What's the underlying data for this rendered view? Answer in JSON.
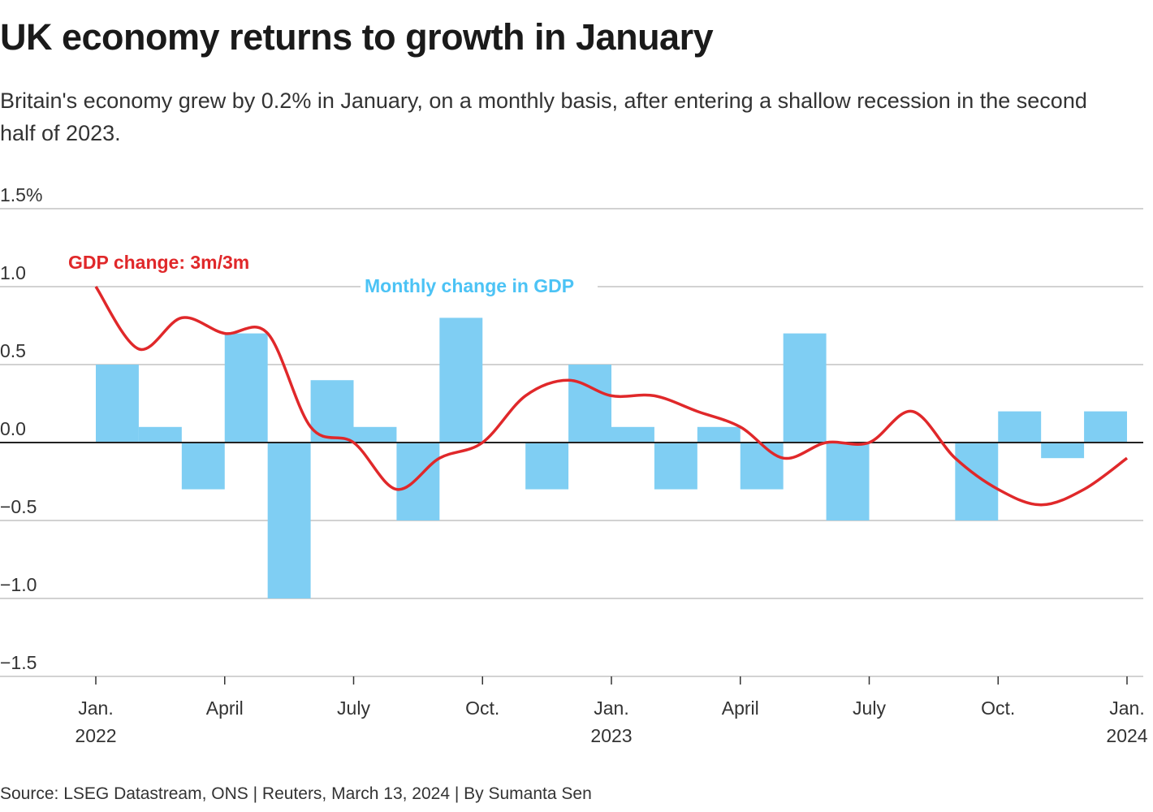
{
  "title": "UK economy returns to growth in January",
  "subtitle": "Britain's economy grew by 0.2% in January, on a monthly basis, after entering a shallow recession in the second half of 2023.",
  "source": "Source: LSEG Datastream, ONS | Reuters, March 13, 2024 | By Sumanta Sen",
  "colors": {
    "bars": "#7fcef3",
    "line": "#e0282a",
    "bar_label": "#4cc3f5",
    "zero_line": "#222222",
    "grid": "#c4c4c4"
  },
  "chart_data": {
    "type": "bar+line",
    "ylim": [
      -1.5,
      1.5
    ],
    "y_ticks": [
      {
        "value": 1.5,
        "label": "1.5%"
      },
      {
        "value": 1.0,
        "label": "1.0"
      },
      {
        "value": 0.5,
        "label": "0.5"
      },
      {
        "value": 0.0,
        "label": "0.0"
      },
      {
        "value": -0.5,
        "label": "−0.5"
      },
      {
        "value": -1.0,
        "label": "−1.0"
      },
      {
        "value": -1.5,
        "label": "−1.5"
      }
    ],
    "x_ticks": [
      {
        "date": "2022-01",
        "label": "Jan.",
        "year": "2022"
      },
      {
        "date": "2022-04",
        "label": "April",
        "year": ""
      },
      {
        "date": "2022-07",
        "label": "July",
        "year": ""
      },
      {
        "date": "2022-10",
        "label": "Oct.",
        "year": ""
      },
      {
        "date": "2023-01",
        "label": "Jan.",
        "year": "2023"
      },
      {
        "date": "2023-04",
        "label": "April",
        "year": ""
      },
      {
        "date": "2023-07",
        "label": "July",
        "year": ""
      },
      {
        "date": "2023-10",
        "label": "Oct.",
        "year": ""
      },
      {
        "date": "2024-01",
        "label": "Jan.",
        "year": "2024"
      }
    ],
    "grid": true,
    "series": [
      {
        "name": "Monthly change in GDP",
        "type": "bar",
        "x": [
          "2022-02",
          "2022-03",
          "2022-04",
          "2022-05",
          "2022-06",
          "2022-07",
          "2022-08",
          "2022-09",
          "2022-10",
          "2022-11",
          "2022-12",
          "2023-01",
          "2023-02",
          "2023-03",
          "2023-04",
          "2023-05",
          "2023-06",
          "2023-07",
          "2023-08",
          "2023-09",
          "2023-10",
          "2023-11",
          "2023-12",
          "2024-01"
        ],
        "values": [
          0.5,
          0.1,
          -0.3,
          0.7,
          -1.0,
          0.4,
          0.1,
          -0.5,
          0.8,
          0.0,
          -0.3,
          0.5,
          0.1,
          -0.3,
          0.1,
          -0.3,
          0.7,
          -0.5,
          0.0,
          0.0,
          -0.5,
          0.2,
          -0.1,
          0.2
        ]
      },
      {
        "name": "GDP change: 3m/3m",
        "type": "line",
        "x": [
          "2022-01",
          "2022-02",
          "2022-03",
          "2022-04",
          "2022-05",
          "2022-06",
          "2022-07",
          "2022-08",
          "2022-09",
          "2022-10",
          "2022-11",
          "2022-12",
          "2023-01",
          "2023-02",
          "2023-03",
          "2023-04",
          "2023-05",
          "2023-06",
          "2023-07",
          "2023-08",
          "2023-09",
          "2023-10",
          "2023-11",
          "2023-12",
          "2024-01"
        ],
        "values": [
          1.0,
          0.6,
          0.8,
          0.7,
          0.7,
          0.1,
          0.0,
          -0.3,
          -0.1,
          0.0,
          0.3,
          0.4,
          0.3,
          0.3,
          0.2,
          0.1,
          -0.1,
          0.0,
          0.0,
          0.2,
          -0.1,
          -0.3,
          -0.4,
          -0.3,
          -0.1
        ]
      }
    ]
  }
}
